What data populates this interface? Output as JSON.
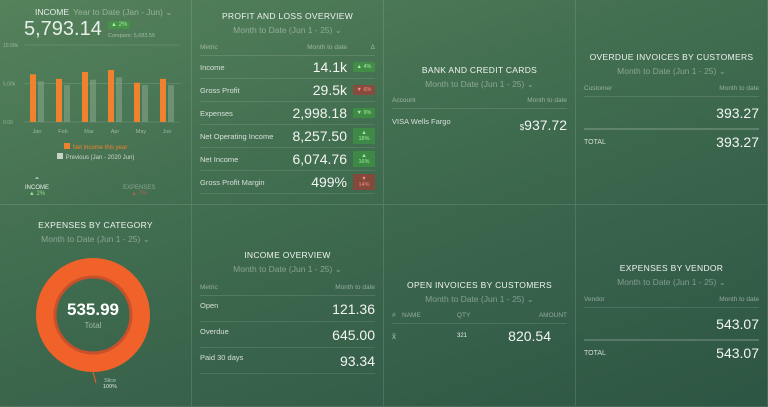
{
  "income": {
    "title": "INCOME",
    "period": "Year to Date (Jan - Jun)",
    "value": "5,793.14",
    "change": "▲ 2%",
    "compare": "Compare: 5,683.55",
    "legend_current": "Net income this year",
    "legend_previous": "Previous (Jan - 2020 Jun)",
    "tabs": [
      {
        "label": "INCOME",
        "change": "▲ 2%"
      },
      {
        "label": "EXPENSES",
        "change": "▲ 7%"
      }
    ]
  },
  "chart_data": {
    "type": "bar",
    "categories": [
      "Jan",
      "Feb",
      "Mar",
      "Apr",
      "May",
      "Jun"
    ],
    "ylim": [
      0,
      10000
    ],
    "yticks": [
      "0.00",
      "5.00k",
      "10.00k"
    ],
    "series": [
      {
        "name": "Net income this year",
        "color": "#f0822d",
        "values": [
          6200,
          5600,
          6500,
          6750,
          5100,
          5600
        ]
      },
      {
        "name": "Previous (Jan - 2020 Jun)",
        "color": "#8aa88a",
        "values": [
          5300,
          4800,
          5500,
          5800,
          4800,
          4800
        ]
      }
    ]
  },
  "pl": {
    "title": "PROFIT AND LOSS OVERVIEW",
    "period": "Month to Date (Jun 1 - 25)",
    "col_metric": "Metric",
    "col_value": "Month to date",
    "col_delta": "Δ",
    "rows": [
      {
        "label": "Income",
        "value": "14.1k",
        "badge": "▲ 4%",
        "dir": "up"
      },
      {
        "label": "Gross Profit",
        "value": "29.5k",
        "badge": "▼ 6%",
        "dir": "dn"
      },
      {
        "label": "Expenses",
        "value": "2,998.18",
        "badge": "▼ 9%",
        "dir": "up"
      },
      {
        "label": "Net Operating Income",
        "value": "8,257.50",
        "badge": "▲ 18%",
        "dir": "up"
      },
      {
        "label": "Net Income",
        "value": "6,074.76",
        "badge": "▲ 16%",
        "dir": "up"
      },
      {
        "label": "Gross Profit Margin",
        "value": "499%",
        "badge": "▼ 14%",
        "dir": "dn"
      }
    ]
  },
  "bank": {
    "title": "BANK AND CREDIT CARDS",
    "period": "Month to Date (Jun 1 - 25)",
    "col_account": "Account",
    "col_value": "Month to date",
    "account": "VISA Wells Fargo",
    "currency": "$",
    "value": "937.72"
  },
  "overdue": {
    "title": "OVERDUE INVOICES BY CUSTOMERS",
    "period": "Month to Date (Jun 1 - 25)",
    "col_customer": "Customer",
    "col_value": "Month to date",
    "value": "393.27",
    "total_label": "TOTAL",
    "total": "393.27"
  },
  "expcat": {
    "title": "EXPENSES BY CATEGORY",
    "period": "Month to Date (Jun 1 - 25)",
    "total": "535.99",
    "total_label": "Total",
    "slice_label": "Slice",
    "slice_pct": "100%",
    "color": "#f0622a"
  },
  "incov": {
    "title": "INCOME OVERVIEW",
    "period": "Month to Date (Jun 1 - 25)",
    "col_metric": "Metric",
    "col_value": "Month to date",
    "rows": [
      {
        "label": "Open",
        "value": "121.36"
      },
      {
        "label": "Overdue",
        "value": "645.00"
      },
      {
        "label": "Paid 30 days",
        "value": "93.34"
      }
    ]
  },
  "openinv": {
    "title": "OPEN INVOICES BY CUSTOMERS",
    "period": "Month to Date (Jun 1 - 25)",
    "cols": [
      "#",
      "NAME",
      "QTY",
      "AMOUNT"
    ],
    "row": {
      "icon": "x-icon",
      "qty": "321",
      "amount": "820.54"
    }
  },
  "vendor": {
    "title": "EXPENSES BY VENDOR",
    "period": "Month to Date (Jun 1 - 25)",
    "col_vendor": "Vendor",
    "col_value": "Month to date",
    "value": "543.07",
    "total_label": "TOTAL",
    "total": "543.07"
  }
}
